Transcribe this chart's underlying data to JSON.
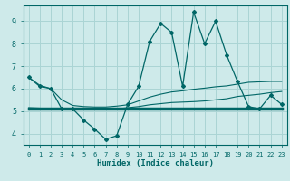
{
  "xlabel": "Humidex (Indice chaleur)",
  "bg_color": "#ceeaea",
  "grid_color": "#aad4d4",
  "line_color": "#006666",
  "xlim": [
    -0.5,
    23.5
  ],
  "ylim": [
    3.5,
    9.7
  ],
  "yticks": [
    4,
    5,
    6,
    7,
    8,
    9
  ],
  "xticks": [
    0,
    1,
    2,
    3,
    4,
    5,
    6,
    7,
    8,
    9,
    10,
    11,
    12,
    13,
    14,
    15,
    16,
    17,
    18,
    19,
    20,
    21,
    22,
    23
  ],
  "series1_x": [
    0,
    1,
    2,
    3,
    4,
    5,
    6,
    7,
    8,
    9,
    10,
    11,
    12,
    13,
    14,
    15,
    16,
    17,
    18,
    19,
    20,
    21,
    22,
    23
  ],
  "series1_y": [
    6.5,
    6.1,
    6.0,
    5.1,
    5.1,
    4.6,
    4.2,
    3.75,
    3.9,
    5.3,
    6.1,
    8.1,
    8.9,
    8.5,
    6.1,
    9.4,
    8.0,
    9.0,
    7.5,
    6.3,
    5.2,
    5.1,
    5.7,
    5.3
  ],
  "series2_x": [
    0,
    23
  ],
  "series2_y": [
    5.1,
    5.1
  ],
  "series3_x": [
    0,
    1,
    2,
    3,
    4,
    5,
    6,
    7,
    8,
    9,
    10,
    11,
    12,
    13,
    14,
    15,
    16,
    17,
    18,
    19,
    20,
    21,
    22,
    23
  ],
  "series3_y": [
    5.15,
    5.13,
    5.11,
    5.09,
    5.07,
    5.07,
    5.08,
    5.09,
    5.1,
    5.15,
    5.2,
    5.28,
    5.33,
    5.38,
    5.4,
    5.42,
    5.45,
    5.5,
    5.55,
    5.65,
    5.7,
    5.75,
    5.82,
    5.87
  ],
  "series4_x": [
    0,
    1,
    2,
    3,
    4,
    5,
    6,
    7,
    8,
    9,
    10,
    11,
    12,
    13,
    14,
    15,
    16,
    17,
    18,
    19,
    20,
    21,
    22,
    23
  ],
  "series4_y": [
    6.5,
    6.15,
    6.0,
    5.5,
    5.25,
    5.2,
    5.18,
    5.18,
    5.22,
    5.28,
    5.45,
    5.62,
    5.75,
    5.85,
    5.9,
    5.97,
    6.02,
    6.08,
    6.12,
    6.2,
    6.28,
    6.3,
    6.32,
    6.32
  ],
  "marker_x": [
    0,
    1,
    2,
    3,
    4,
    5,
    6,
    7,
    8,
    9,
    10,
    11,
    12,
    13,
    14,
    15,
    16,
    17,
    18,
    19,
    20,
    21,
    22,
    23
  ],
  "marker_y": [
    6.5,
    6.1,
    6.0,
    5.1,
    5.1,
    4.6,
    4.2,
    3.75,
    3.9,
    5.3,
    6.1,
    8.1,
    8.9,
    8.5,
    6.1,
    9.4,
    8.0,
    9.0,
    7.5,
    6.3,
    5.2,
    5.1,
    5.7,
    5.3
  ]
}
